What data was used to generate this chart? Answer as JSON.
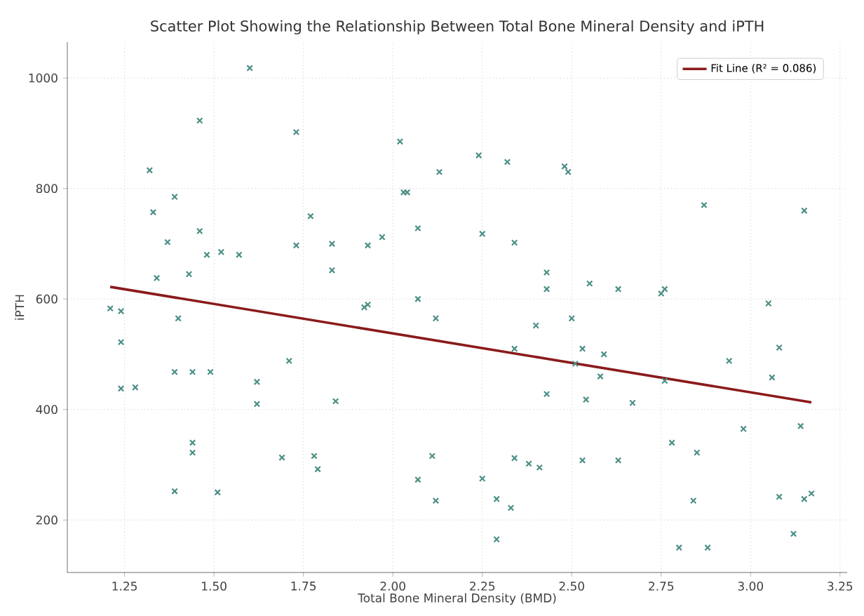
{
  "chart_data": {
    "type": "scatter",
    "title": "Scatter Plot Showing the Relationship Between Total Bone Mineral Density and iPTH",
    "xlabel": "Total Bone Mineral Density (BMD)",
    "ylabel": "iPTH",
    "xlim": [
      1.09,
      3.27
    ],
    "ylim": [
      105,
      1065
    ],
    "xticks": [
      1.25,
      {
        "value": 1.5,
        "label": "1.50"
      },
      1.75,
      {
        "value": 2.0,
        "label": "2.00"
      },
      2.25,
      {
        "value": 2.5,
        "label": "2.50"
      },
      2.75,
      {
        "value": 3.0,
        "label": "3.00"
      },
      3.25
    ],
    "yticks": [
      200,
      400,
      600,
      800,
      1000
    ],
    "grid": true,
    "legend": "top right",
    "series": [
      {
        "marker": "cross",
        "color": "#4a8f85",
        "x": [
          1.21,
          1.24,
          1.24,
          1.24,
          1.28,
          1.32,
          1.33,
          1.34,
          1.37,
          1.39,
          1.4,
          1.39,
          1.39,
          1.43,
          1.44,
          1.44,
          1.44,
          1.46,
          1.46,
          1.48,
          1.49,
          1.52,
          1.51,
          1.57,
          1.6,
          1.62,
          1.62,
          1.69,
          1.71,
          1.73,
          1.73,
          1.77,
          1.78,
          1.79,
          1.83,
          1.83,
          1.84,
          1.92,
          1.93,
          1.93,
          1.97,
          2.02,
          2.03,
          2.04,
          2.07,
          2.07,
          2.07,
          2.11,
          2.12,
          2.13,
          2.12,
          2.24,
          2.25,
          2.25,
          2.29,
          2.29,
          2.32,
          2.34,
          2.34,
          2.34,
          2.33,
          2.38,
          2.4,
          2.41,
          2.43,
          2.43,
          2.43,
          2.48,
          2.49,
          2.5,
          2.51,
          2.53,
          2.53,
          2.54,
          2.55,
          2.58,
          2.59,
          2.63,
          2.63,
          2.67,
          2.75,
          2.76,
          2.76,
          2.78,
          2.8,
          2.84,
          2.85,
          2.87,
          2.88,
          2.94,
          2.98,
          3.05,
          3.06,
          3.08,
          3.08,
          3.12,
          3.14,
          3.15,
          3.15,
          3.17
        ],
        "values": [
          583,
          578,
          522,
          438,
          440,
          833,
          757,
          638,
          703,
          785,
          565,
          468,
          252,
          645,
          468,
          340,
          322,
          923,
          723,
          680,
          468,
          685,
          250,
          680,
          1018,
          450,
          410,
          313,
          488,
          902,
          697,
          750,
          316,
          292,
          700,
          652,
          415,
          585,
          590,
          697,
          712,
          885,
          793,
          793,
          728,
          600,
          273,
          316,
          565,
          830,
          235,
          860,
          718,
          275,
          165,
          238,
          848,
          702,
          510,
          312,
          222,
          302,
          552,
          295,
          648,
          618,
          428,
          840,
          830,
          565,
          483,
          510,
          308,
          418,
          628,
          460,
          500,
          618,
          308,
          412,
          610,
          618,
          452,
          340,
          150,
          235,
          322,
          770,
          150,
          488,
          365,
          592,
          458,
          512,
          242,
          175,
          370,
          760,
          238,
          248
        ]
      },
      {
        "type": "line",
        "marker": "none",
        "name": "Fit Line (R² = 0.086)",
        "color": "#8b1a1a",
        "x": [
          1.21,
          3.17
        ],
        "values": [
          622,
          413
        ]
      }
    ]
  }
}
